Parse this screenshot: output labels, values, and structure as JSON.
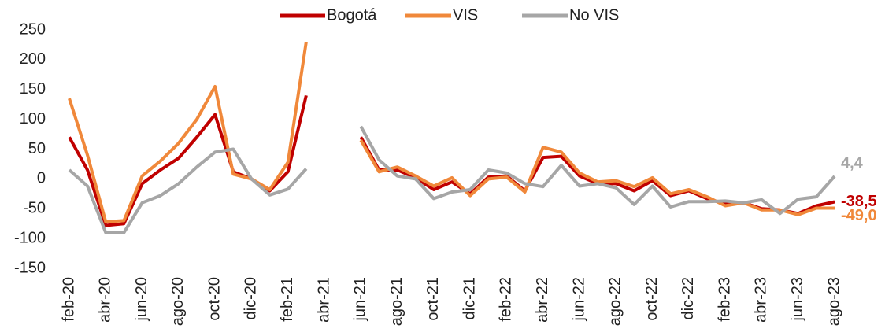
{
  "chart_data": {
    "type": "line",
    "categories": [
      "feb-20",
      null,
      "abr-20",
      null,
      "jun-20",
      null,
      "ago-20",
      null,
      "oct-20",
      null,
      "dic-20",
      null,
      "feb-21",
      null,
      "abr-21",
      null,
      "jun-21",
      null,
      "ago-21",
      null,
      "oct-21",
      null,
      "dic-21",
      null,
      "feb-22",
      null,
      "abr-22",
      null,
      "jun-22",
      null,
      "ago-22",
      null,
      "oct-22",
      null,
      "dic-22",
      null,
      "feb-23",
      null,
      "abr-23",
      null,
      "jun-23",
      null,
      "ago-23"
    ],
    "series": [
      {
        "name": "Bogotá",
        "color": "#c00000",
        "last_label": "-38,5",
        "values": [
          70,
          15,
          -78,
          -75,
          -8,
          15,
          35,
          70,
          108,
          12,
          0,
          -20,
          12,
          140,
          null,
          null,
          70,
          15,
          15,
          2,
          -18,
          -5,
          -25,
          3,
          5,
          -20,
          36,
          38,
          5,
          -8,
          -8,
          -20,
          -3,
          -28,
          -20,
          -33,
          -42,
          -40,
          -50,
          -52,
          -58,
          -45,
          -38.5
        ]
      },
      {
        "name": "VIS",
        "color": "#f0883a",
        "last_label": "-49,0",
        "values": [
          135,
          40,
          -72,
          -70,
          5,
          30,
          60,
          100,
          155,
          8,
          0,
          -18,
          28,
          230,
          null,
          null,
          65,
          12,
          20,
          5,
          -12,
          2,
          -28,
          0,
          3,
          -22,
          53,
          45,
          10,
          -5,
          -3,
          -13,
          2,
          -25,
          -18,
          -30,
          -45,
          -40,
          -52,
          -52,
          -60,
          -49,
          -49
        ]
      },
      {
        "name": "No VIS",
        "color": "#a6a6a6",
        "last_label": "4,4",
        "values": [
          15,
          -12,
          -90,
          -90,
          -40,
          -28,
          -8,
          20,
          45,
          50,
          0,
          -27,
          -17,
          17,
          null,
          null,
          88,
          32,
          5,
          0,
          -33,
          -22,
          -18,
          15,
          10,
          -8,
          -13,
          23,
          -12,
          -8,
          -15,
          -43,
          -12,
          -47,
          -38,
          -38,
          -37,
          -40,
          -35,
          -58,
          -34,
          -30,
          4.4
        ]
      }
    ],
    "ylim": [
      -150,
      250
    ],
    "yticks": [
      -150,
      -100,
      -50,
      0,
      50,
      100,
      150,
      200,
      250
    ]
  }
}
